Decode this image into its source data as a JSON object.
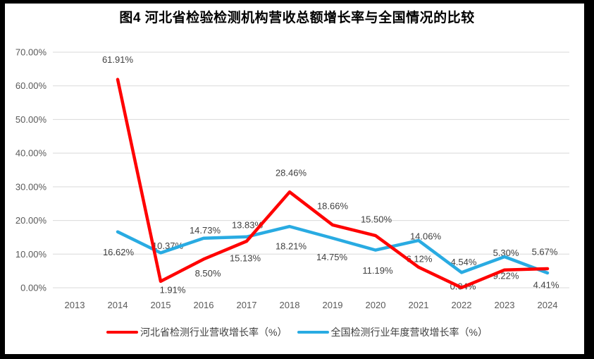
{
  "title": "图4 河北省检验检测机构营收总额增长率与全国情况的比较",
  "chart_data": {
    "type": "line",
    "title": "图4 河北省检验检测机构营收总额增长率与全国情况的比较",
    "x_categories": [
      "2013",
      "2014",
      "2015",
      "2016",
      "2017",
      "2018",
      "2019",
      "2020",
      "2021",
      "2022",
      "2023",
      "2024"
    ],
    "y_ticks": [
      "0.00%",
      "10.00%",
      "20.00%",
      "30.00%",
      "40.00%",
      "50.00%",
      "60.00%",
      "70.00%"
    ],
    "ylim": [
      0,
      70
    ],
    "grid": true,
    "legend_position": "bottom",
    "grid_color": "#D9D9D9",
    "axis_text_color": "#595959",
    "data_label_color": "#404040",
    "series": [
      {
        "name": "河北省检测行业营收增长率（%）",
        "color": "#FF0000",
        "start_year": "2014",
        "values": [
          61.91,
          1.91,
          8.5,
          13.83,
          28.46,
          18.66,
          15.5,
          6.12,
          0.04,
          5.3,
          5.67
        ],
        "labels": [
          "61.91%",
          "1.91%",
          "8.50%",
          "13.83%",
          "28.46%",
          "18.66%",
          "15.50%",
          "6.12%",
          "0.04%",
          "5.30%",
          "5.67%"
        ],
        "label_offsets": [
          [
            0,
            -28
          ],
          [
            17,
            12
          ],
          [
            6,
            20
          ],
          [
            1,
            -23
          ],
          [
            2,
            -27
          ],
          [
            0,
            -27
          ],
          [
            1,
            -23
          ],
          [
            1,
            -12
          ],
          [
            2,
            -2
          ],
          [
            2,
            -24
          ],
          [
            -4,
            -24
          ]
        ]
      },
      {
        "name": "全国检测行业年度营收增长率（%）",
        "color": "#29ABE2",
        "start_year": "2014",
        "values": [
          16.62,
          10.37,
          14.73,
          15.13,
          18.21,
          14.75,
          11.19,
          14.06,
          4.54,
          9.22,
          4.41
        ],
        "labels": [
          "16.62%",
          "10.37%",
          "14.73%",
          "15.13%",
          "18.21%",
          "14.75%",
          "11.19%",
          "14.06%",
          "4.54%",
          "9.22%",
          "4.41%"
        ],
        "label_offsets": [
          [
            1,
            29
          ],
          [
            10,
            -10
          ],
          [
            2,
            -11
          ],
          [
            -2,
            30
          ],
          [
            2,
            28
          ],
          [
            -1,
            27
          ],
          [
            3,
            29
          ],
          [
            10,
            -6
          ],
          [
            3,
            -15
          ],
          [
            2,
            27
          ],
          [
            -2,
            17
          ]
        ]
      }
    ]
  }
}
